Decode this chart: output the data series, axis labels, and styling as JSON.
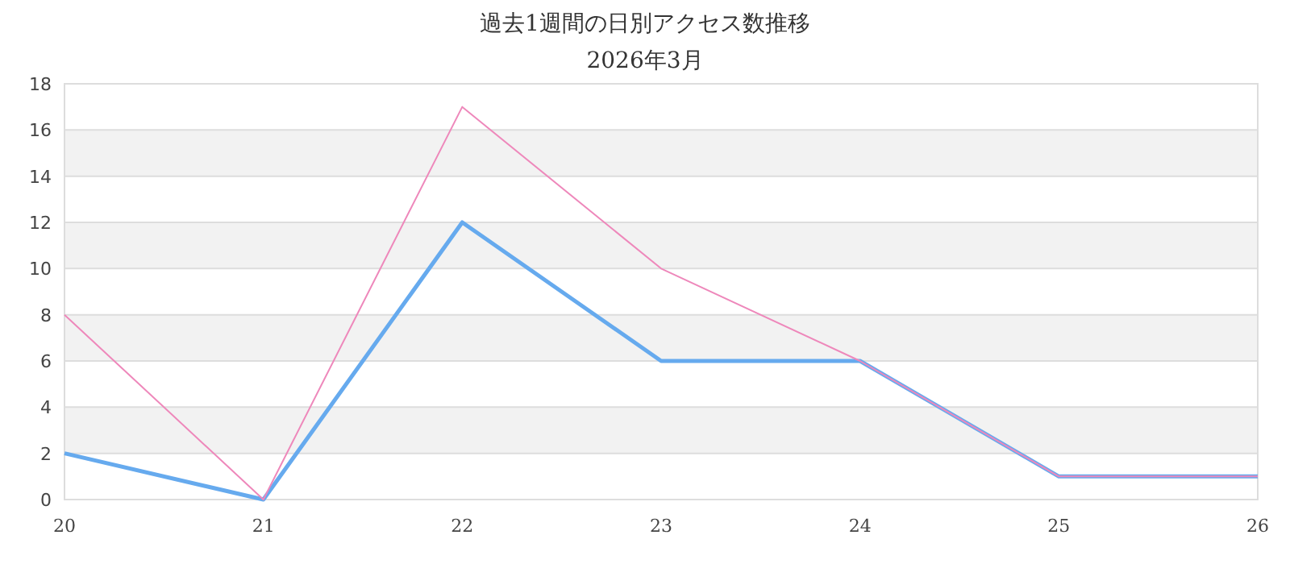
{
  "chart_data": {
    "type": "line",
    "title": "過去1週間の日別アクセス数推移",
    "subtitle": "2026年3月",
    "categories": [
      "20",
      "21",
      "22",
      "23",
      "24",
      "25",
      "26"
    ],
    "series": [
      {
        "color": "#66aaee",
        "values": [
          2,
          0,
          12,
          6,
          6,
          1,
          1
        ]
      },
      {
        "color": "#ee88bb",
        "values": [
          8,
          0,
          17,
          10,
          6,
          1,
          1
        ]
      }
    ],
    "ylim": [
      0,
      18
    ],
    "yticks": [
      0,
      2,
      4,
      6,
      8,
      10,
      12,
      14,
      16,
      18
    ],
    "grid": "y",
    "marker": "none",
    "line_style": "solid",
    "bands": [
      {
        "axis": "y",
        "from": 2,
        "to": 4,
        "color": "#f2f2f2"
      },
      {
        "axis": "y",
        "from": 6,
        "to": 8,
        "color": "#f2f2f2"
      },
      {
        "axis": "y",
        "from": 10,
        "to": 12,
        "color": "#f2f2f2"
      },
      {
        "axis": "y",
        "from": 14,
        "to": 16,
        "color": "#f2f2f2"
      }
    ]
  }
}
